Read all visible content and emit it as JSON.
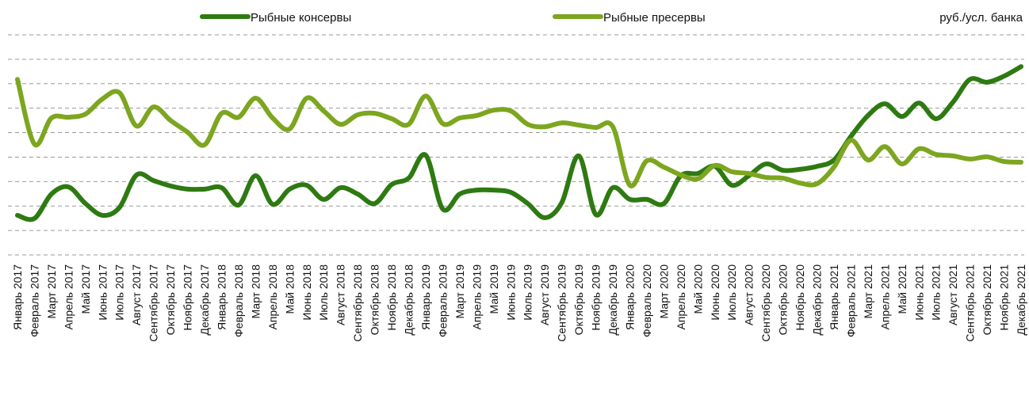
{
  "chart_data": {
    "type": "line",
    "unit_label": "руб./усл. банка",
    "categories": [
      "Январь 2017",
      "Февраль 2017",
      "Март 2017",
      "Апрель 2017",
      "Май 2017",
      "Июнь 2017",
      "Июль 2017",
      "Август 2017",
      "Сентябрь 2017",
      "Октябрь 2017",
      "Ноябрь 2017",
      "Декабрь 2017",
      "Январь 2018",
      "Февраль 2018",
      "Март 2018",
      "Апрель 2018",
      "Май 2018",
      "Июнь 2018",
      "Июль 2018",
      "Август 2018",
      "Сентябрь 2018",
      "Октябрь 2018",
      "Ноябрь 2018",
      "Декабрь 2018",
      "Январь 2019",
      "Февраль 2019",
      "Март 2019",
      "Апрель 2019",
      "Май 2019",
      "Июнь 2019",
      "Июль 2019",
      "Август 2019",
      "Сентябрь 2019",
      "Октябрь 2019",
      "Ноябрь 2019",
      "Декабрь 2019",
      "Январь 2020",
      "Февраль 2020",
      "Март 2020",
      "Апрель 2020",
      "Май 2020",
      "Июнь 2020",
      "Июль 2020",
      "Август 2020",
      "Сентябрь 2020",
      "Октябрь 2020",
      "Ноябрь 2020",
      "Декабрь 2020",
      "Январь 2021",
      "Февраль 2021",
      "Март 2021",
      "Апрель 2021",
      "Май 2021",
      "Июнь 2021",
      "Июль 2021",
      "Август 2021",
      "Сентябрь 2021",
      "Октябрь 2021",
      "Ноябрь 2021",
      "Декабрь 2021"
    ],
    "series": [
      {
        "name": "Рыбные консервы",
        "color": "#2e7a12",
        "values": [
          1.62,
          1.49,
          2.49,
          2.78,
          2.1,
          1.62,
          1.94,
          3.27,
          3.04,
          2.82,
          2.69,
          2.69,
          2.75,
          2.04,
          3.24,
          2.07,
          2.69,
          2.85,
          2.27,
          2.75,
          2.49,
          2.1,
          2.88,
          3.14,
          4.08,
          1.88,
          2.49,
          2.65,
          2.65,
          2.56,
          2.1,
          1.52,
          2.14,
          4.05,
          1.65,
          2.75,
          2.27,
          2.27,
          2.1,
          3.24,
          3.33,
          3.62,
          2.85,
          3.24,
          3.72,
          3.46,
          3.5,
          3.62,
          3.88,
          4.85,
          5.7,
          6.18,
          5.66,
          6.21,
          5.57,
          6.25,
          7.18,
          7.06,
          7.31,
          7.7
        ]
      },
      {
        "name": "Рыбные пресервы",
        "color": "#7ca61f",
        "values": [
          7.18,
          4.53,
          5.6,
          5.63,
          5.76,
          6.38,
          6.63,
          5.27,
          6.05,
          5.5,
          5.02,
          4.5,
          5.79,
          5.63,
          6.41,
          5.6,
          5.15,
          6.41,
          5.89,
          5.34,
          5.73,
          5.79,
          5.57,
          5.34,
          6.5,
          5.37,
          5.6,
          5.7,
          5.92,
          5.89,
          5.34,
          5.24,
          5.4,
          5.31,
          5.21,
          5.24,
          2.85,
          3.85,
          3.59,
          3.27,
          3.11,
          3.66,
          3.4,
          3.33,
          3.17,
          3.14,
          2.94,
          2.91,
          3.59,
          4.69,
          3.88,
          4.43,
          3.72,
          4.34,
          4.11,
          4.05,
          3.92,
          4.01,
          3.82,
          3.79
        ]
      }
    ],
    "ylim": [
      0,
      9
    ],
    "yticks": [
      0,
      1,
      2,
      3,
      4,
      5,
      6,
      7,
      8,
      9
    ],
    "grid": true,
    "legend": "top"
  }
}
